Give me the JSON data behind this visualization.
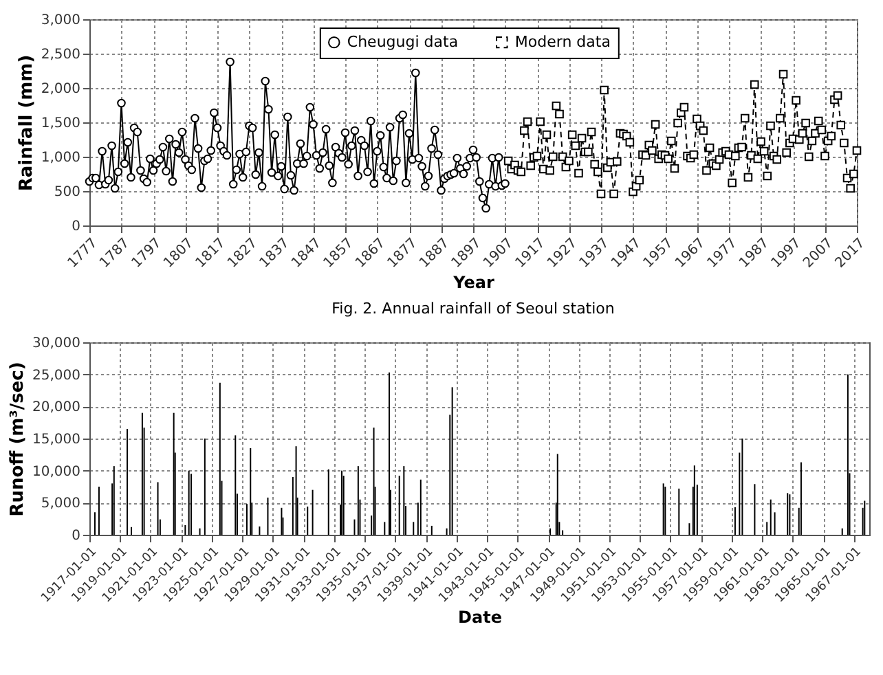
{
  "chart_data": [
    {
      "type": "line",
      "xlabel": "Year",
      "ylabel": "Rainfall (mm)",
      "annotations": [
        "Fig. 2. Annual rainfall of Seoul station"
      ],
      "xlim": [
        1777,
        2017
      ],
      "xticks": [
        1777,
        1787,
        1797,
        1807,
        1817,
        1827,
        1837,
        1847,
        1857,
        1867,
        1877,
        1887,
        1897,
        1907,
        1917,
        1927,
        1937,
        1947,
        1957,
        1967,
        1977,
        1987,
        1997,
        2007,
        2017
      ],
      "ylim": [
        0,
        3000
      ],
      "yticks": [
        {
          "value": 0,
          "label": "0"
        },
        {
          "value": 500,
          "label": "500"
        },
        {
          "value": 1000,
          "label": "1,000"
        },
        {
          "value": 1500,
          "label": "1,500"
        },
        {
          "value": 2000,
          "label": "2,000"
        },
        {
          "value": 2500,
          "label": "2,500"
        },
        {
          "value": 3000,
          "label": "3,000"
        }
      ],
      "grid": true,
      "legend": "top",
      "series": [
        {
          "name": "Cheugugi data",
          "color": "#000000",
          "marker": "circle",
          "line_style": "solid",
          "x": [
            1777,
            1778,
            1779,
            1780,
            1781,
            1782,
            1783,
            1784,
            1785,
            1786,
            1787,
            1788,
            1789,
            1790,
            1791,
            1792,
            1793,
            1794,
            1795,
            1796,
            1797,
            1798,
            1799,
            1800,
            1801,
            1802,
            1803,
            1804,
            1805,
            1806,
            1807,
            1808,
            1809,
            1810,
            1811,
            1812,
            1813,
            1814,
            1815,
            1816,
            1817,
            1818,
            1819,
            1820,
            1821,
            1822,
            1823,
            1824,
            1825,
            1826,
            1827,
            1828,
            1829,
            1830,
            1831,
            1832,
            1833,
            1834,
            1835,
            1836,
            1837,
            1838,
            1839,
            1840,
            1841,
            1842,
            1843,
            1844,
            1845,
            1846,
            1847,
            1848,
            1849,
            1850,
            1851,
            1852,
            1853,
            1854,
            1855,
            1856,
            1857,
            1858,
            1859,
            1860,
            1861,
            1862,
            1863,
            1864,
            1865,
            1866,
            1867,
            1868,
            1869,
            1870,
            1871,
            1872,
            1873,
            1874,
            1875,
            1876,
            1877,
            1878,
            1879,
            1880,
            1881,
            1882,
            1883,
            1884,
            1885,
            1886,
            1887,
            1888,
            1889,
            1890,
            1891,
            1892,
            1893,
            1894,
            1895,
            1896,
            1897,
            1898,
            1899,
            1900,
            1901,
            1902,
            1903,
            1904,
            1905,
            1906,
            1907
          ],
          "values": [
            640,
            690,
            690,
            590,
            1080,
            600,
            660,
            1160,
            540,
            780,
            1780,
            900,
            1210,
            700,
            1420,
            1360,
            800,
            680,
            630,
            970,
            800,
            900,
            960,
            1140,
            790,
            1260,
            640,
            1180,
            1060,
            1360,
            960,
            870,
            810,
            1560,
            1120,
            550,
            940,
            970,
            1090,
            1640,
            1420,
            1160,
            1080,
            1020,
            2380,
            600,
            810,
            1040,
            700,
            1070,
            1450,
            1420,
            740,
            1060,
            570,
            2100,
            1690,
            770,
            1320,
            720,
            860,
            530,
            1580,
            730,
            510,
            900,
            1190,
            900,
            1010,
            1720,
            1470,
            1020,
            830,
            1060,
            1400,
            870,
            620,
            1140,
            1050,
            990,
            1350,
            890,
            1160,
            1380,
            720,
            1240,
            1160,
            780,
            1520,
            610,
            1080,
            1310,
            850,
            690,
            1430,
            650,
            940,
            1560,
            1610,
            620,
            1340,
            960,
            2220,
            980,
            860,
            570,
            720,
            1120,
            1390,
            1030,
            510,
            680,
            720,
            740,
            760,
            980,
            830,
            750,
            860,
            980,
            1100,
            990,
            640,
            400,
            250,
            600,
            980,
            570,
            990,
            580,
            610
          ]
        },
        {
          "name": "Modern data",
          "color": "#000000",
          "marker": "square",
          "line_style": "dashed",
          "x": [
            1908,
            1909,
            1910,
            1911,
            1912,
            1913,
            1914,
            1915,
            1916,
            1917,
            1918,
            1919,
            1920,
            1921,
            1922,
            1923,
            1924,
            1925,
            1926,
            1927,
            1928,
            1929,
            1930,
            1931,
            1932,
            1933,
            1934,
            1935,
            1936,
            1937,
            1938,
            1939,
            1940,
            1941,
            1942,
            1943,
            1944,
            1945,
            1946,
            1947,
            1948,
            1949,
            1950,
            1951,
            1952,
            1953,
            1954,
            1955,
            1956,
            1957,
            1958,
            1959,
            1960,
            1961,
            1962,
            1963,
            1964,
            1965,
            1966,
            1967,
            1968,
            1969,
            1970,
            1971,
            1972,
            1973,
            1974,
            1975,
            1976,
            1977,
            1978,
            1979,
            1980,
            1981,
            1982,
            1983,
            1984,
            1985,
            1986,
            1987,
            1988,
            1989,
            1990,
            1991,
            1992,
            1993,
            1994,
            1995,
            1996,
            1997,
            1998,
            1999,
            2000,
            2001,
            2002,
            2003,
            2004,
            2005,
            2006,
            2007,
            2008,
            2009,
            2010,
            2011,
            2012,
            2013,
            2014,
            2015,
            2016,
            2017
          ],
          "values": [
            940,
            820,
            880,
            800,
            780,
            1380,
            1510,
            870,
            990,
            1010,
            1510,
            820,
            1320,
            800,
            1000,
            1740,
            1620,
            1000,
            850,
            940,
            1320,
            1160,
            760,
            1270,
            1070,
            1070,
            1360,
            890,
            780,
            460,
            1970,
            840,
            920,
            460,
            930,
            1340,
            1330,
            1300,
            1210,
            490,
            570,
            660,
            1030,
            1020,
            1170,
            1090,
            1470,
            970,
            1030,
            1020,
            970,
            1230,
            830,
            1490,
            1640,
            1720,
            1010,
            980,
            1030,
            1550,
            1450,
            1380,
            800,
            1130,
            900,
            870,
            960,
            1060,
            1080,
            1030,
            620,
            1010,
            1130,
            1140,
            1560,
            700,
            1020,
            2050,
            970,
            1220,
            1080,
            720,
            1450,
            1010,
            960,
            1560,
            2200,
            1060,
            1200,
            1260,
            1820,
            1250,
            1340,
            1490,
            1000,
            1230,
            1340,
            1520,
            1390,
            1010,
            1230,
            1300,
            1830,
            1890,
            1460,
            1200,
            690,
            540,
            750,
            1090
          ]
        }
      ]
    },
    {
      "type": "bar",
      "xlabel": "Date",
      "ylabel": "Runoff (m³/sec)",
      "color": "#000000",
      "xlim": [
        "1917-01-01",
        "1968-01-01"
      ],
      "xticks": [
        "1917-01-01",
        "1919-01-01",
        "1921-01-01",
        "1923-01-01",
        "1925-01-01",
        "1927-01-01",
        "1929-01-01",
        "1931-01-01",
        "1933-01-01",
        "1935-01-01",
        "1937-01-01",
        "1939-01-01",
        "1941-01-01",
        "1943-01-01",
        "1945-01-01",
        "1947-01-01",
        "1949-01-01",
        "1951-01-01",
        "1953-01-01",
        "1955-01-01",
        "1957-01-01",
        "1959-01-01",
        "1961-01-01",
        "1963-01-01",
        "1965-01-01",
        "1967-01-01"
      ],
      "ylim": [
        0,
        30000
      ],
      "yticks": [
        {
          "value": 0,
          "label": "0"
        },
        {
          "value": 5000,
          "label": "5,000"
        },
        {
          "value": 10000,
          "label": "10,000"
        },
        {
          "value": 15000,
          "label": "15,000"
        },
        {
          "value": 20000,
          "label": "20,000"
        },
        {
          "value": 25000,
          "label": "25,000"
        },
        {
          "value": 30000,
          "label": "30,000"
        }
      ],
      "grid": true,
      "x": [
        "1917-05-12",
        "1917-08-18",
        "1918-06-29",
        "1918-08-12",
        "1919-06-24",
        "1919-09-30",
        "1920-06-17",
        "1920-07-31",
        "1921-06-24",
        "1921-08-18",
        "1922-07-09",
        "1922-08-11",
        "1923-04-09",
        "1923-07-05",
        "1923-08-29",
        "1924-03-22",
        "1924-07-20",
        "1925-07-16",
        "1925-08-29",
        "1926-07-20",
        "1926-09-02",
        "1927-04-20",
        "1927-07-16",
        "1927-08-18",
        "1928-02-17",
        "1928-09-02",
        "1929-07-27",
        "1929-08-29",
        "1930-04-23",
        "1930-07-09",
        "1930-08-11",
        "1931-04-09",
        "1931-08-08",
        "1932-08-22",
        "1933-06-03",
        "1933-07-05",
        "1933-08-18",
        "1934-05-04",
        "1934-07-31",
        "1934-09-12",
        "1935-06-13",
        "1935-08-08",
        "1935-09-09",
        "1936-04-23",
        "1936-08-11",
        "1936-09-12",
        "1937-04-09",
        "1937-07-27",
        "1937-09-09",
        "1938-03-13",
        "1938-06-29",
        "1938-09-02",
        "1939-05-23",
        "1940-05-15",
        "1940-07-31",
        "1940-09-24",
        "1947-02-20",
        "1947-07-12",
        "1947-08-14",
        "1947-09-26",
        "1947-12-13",
        "1954-07-16",
        "1954-08-29",
        "1955-07-23",
        "1956-03-27",
        "1956-06-24",
        "1956-07-27",
        "1956-10-01",
        "1959-03-25",
        "1959-07-08",
        "1959-09-13",
        "1960-07-05",
        "1961-04-23",
        "1961-07-23",
        "1961-10-27",
        "1962-08-29",
        "1962-10-20",
        "1963-05-27",
        "1963-07-19",
        "1966-03-27",
        "1966-08-08",
        "1966-09-20",
        "1967-07-31",
        "1967-09-13"
      ],
      "values": [
        3500,
        7500,
        8000,
        10700,
        16500,
        1200,
        19000,
        16700,
        8200,
        2400,
        19000,
        12800,
        1500,
        10000,
        9500,
        1000,
        15000,
        23700,
        8400,
        15500,
        6400,
        4800,
        13500,
        5000,
        1300,
        5800,
        4200,
        2700,
        9000,
        13800,
        5800,
        4400,
        7000,
        10200,
        4700,
        10000,
        9200,
        2400,
        10700,
        5500,
        3000,
        16700,
        7500,
        2000,
        25300,
        7000,
        9200,
        10700,
        4500,
        2000,
        5000,
        8600,
        1400,
        1000,
        18700,
        23000,
        1000,
        5000,
        12600,
        2000,
        700,
        8000,
        7500,
        7200,
        1800,
        7500,
        10800,
        7800,
        4300,
        12800,
        15000,
        7900,
        2000,
        5500,
        3500,
        6500,
        6300,
        4200,
        11300,
        1000,
        25000,
        9600,
        4200,
        5300
      ]
    }
  ]
}
